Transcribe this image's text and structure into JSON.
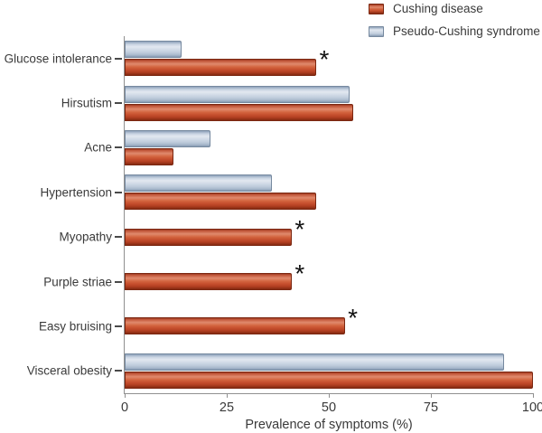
{
  "legend": {
    "items": [
      {
        "label": "Cushing disease",
        "color_key": "cushing"
      },
      {
        "label": "Pseudo-Cushing syndrome",
        "color_key": "pseudo"
      }
    ]
  },
  "colors": {
    "cushing_top": "#9d3a22",
    "cushing_light": "#e08a6d",
    "cushing_mid": "#c64f2e",
    "cushing_dark": "#842a12",
    "cushing_border": "#7b2711",
    "pseudo_top": "#8fa2ba",
    "pseudo_light": "#e2e8f0",
    "pseudo_mid": "#bfccdc",
    "pseudo_dark": "#8699b1",
    "pseudo_border": "#76899f",
    "axis": "#909090",
    "tick": "#4a4a4a",
    "text": "#3a3a3a"
  },
  "chart_data": {
    "type": "bar",
    "orientation": "horizontal",
    "title": "",
    "xlabel": "Prevalence of symptoms (%)",
    "ylabel": "",
    "xlim": [
      0,
      100
    ],
    "x_ticks": [
      0,
      25,
      50,
      75,
      100
    ],
    "grid": false,
    "legend_position": "top-right",
    "annotation_symbol": "*",
    "annotation_meaning": "asterisk marks bars shown with * in figure",
    "categories": [
      "Glucose intolerance",
      "Hirsutism",
      "Acne",
      "Hypertension",
      "Myopathy",
      "Purple striae",
      "Easy bruising",
      "Visceral obesity"
    ],
    "series": [
      {
        "name": "Cushing disease",
        "color": "#c64f2e",
        "values": [
          47,
          56,
          12,
          47,
          41,
          41,
          54,
          100
        ],
        "asterisk": [
          true,
          false,
          false,
          false,
          true,
          true,
          true,
          false
        ]
      },
      {
        "name": "Pseudo-Cushing syndrome",
        "color": "#bfccdc",
        "values": [
          14,
          55,
          21,
          36,
          0,
          0,
          0,
          93
        ]
      }
    ]
  }
}
